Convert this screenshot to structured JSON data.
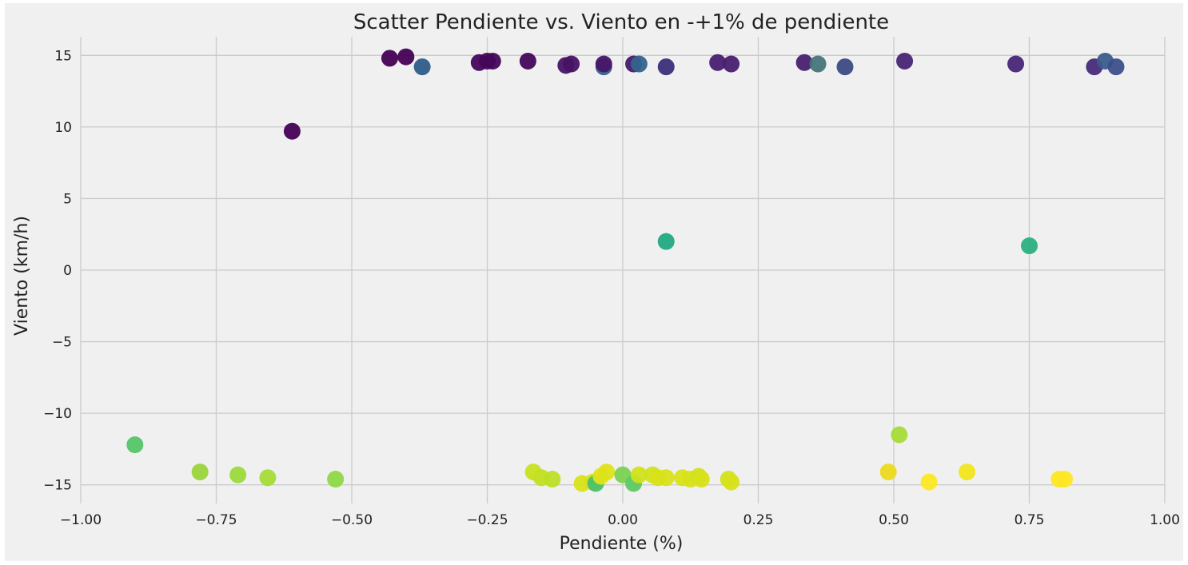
{
  "chart_data": {
    "type": "scatter",
    "title": "Scatter Pendiente vs. Viento en -+1% de pendiente",
    "xlabel": "Pendiente (%)",
    "ylabel": "Viento (km/h)",
    "xlim": [
      -1.0,
      1.0
    ],
    "ylim": [
      -16.3,
      16.3
    ],
    "xticks": [
      -1.0,
      -0.75,
      -0.5,
      -0.25,
      0.0,
      0.25,
      0.5,
      0.75,
      1.0
    ],
    "xtick_labels": [
      "−1.00",
      "−0.75",
      "−0.50",
      "−0.25",
      "0.00",
      "0.25",
      "0.50",
      "0.75",
      "1.00"
    ],
    "yticks": [
      15,
      10,
      5,
      0,
      -5,
      -10,
      -15
    ],
    "ytick_labels": [
      "15",
      "10",
      "5",
      "0",
      "−5",
      "−10",
      "−15"
    ],
    "grid": true,
    "colormap": "viridis",
    "points": [
      {
        "x": -0.61,
        "y": 9.7,
        "color": "#440154"
      },
      {
        "x": -0.43,
        "y": 14.8,
        "color": "#440154"
      },
      {
        "x": -0.4,
        "y": 14.9,
        "color": "#440154"
      },
      {
        "x": -0.37,
        "y": 14.2,
        "color": "#2f5c8a"
      },
      {
        "x": -0.265,
        "y": 14.5,
        "color": "#45065a"
      },
      {
        "x": -0.25,
        "y": 14.6,
        "color": "#45065a"
      },
      {
        "x": -0.24,
        "y": 14.6,
        "color": "#45065a"
      },
      {
        "x": -0.175,
        "y": 14.6,
        "color": "#45065a"
      },
      {
        "x": -0.105,
        "y": 14.3,
        "color": "#471365"
      },
      {
        "x": -0.095,
        "y": 14.4,
        "color": "#471365"
      },
      {
        "x": -0.035,
        "y": 14.2,
        "color": "#355f8d"
      },
      {
        "x": -0.035,
        "y": 14.4,
        "color": "#461668"
      },
      {
        "x": 0.02,
        "y": 14.4,
        "color": "#46196b"
      },
      {
        "x": 0.03,
        "y": 14.4,
        "color": "#33638d"
      },
      {
        "x": 0.08,
        "y": 14.2,
        "color": "#3b2f79"
      },
      {
        "x": 0.175,
        "y": 14.5,
        "color": "#481d6f"
      },
      {
        "x": 0.2,
        "y": 14.4,
        "color": "#481d6f"
      },
      {
        "x": 0.335,
        "y": 14.5,
        "color": "#482071"
      },
      {
        "x": 0.36,
        "y": 14.4,
        "color": "#46757a"
      },
      {
        "x": 0.41,
        "y": 14.2,
        "color": "#3b4a82"
      },
      {
        "x": 0.52,
        "y": 14.6,
        "color": "#482475"
      },
      {
        "x": 0.725,
        "y": 14.4,
        "color": "#482677"
      },
      {
        "x": 0.87,
        "y": 14.2,
        "color": "#472a7a"
      },
      {
        "x": 0.89,
        "y": 14.6,
        "color": "#3a5c8b"
      },
      {
        "x": 0.91,
        "y": 14.2,
        "color": "#3d4e8a"
      },
      {
        "x": 0.08,
        "y": 2.0,
        "color": "#22a884"
      },
      {
        "x": 0.75,
        "y": 1.7,
        "color": "#2ab07f"
      },
      {
        "x": -0.9,
        "y": -12.2,
        "color": "#54c568"
      },
      {
        "x": -0.78,
        "y": -14.1,
        "color": "#9ad43a"
      },
      {
        "x": -0.71,
        "y": -14.3,
        "color": "#9bd93c"
      },
      {
        "x": -0.655,
        "y": -14.5,
        "color": "#a5db36"
      },
      {
        "x": -0.53,
        "y": -14.6,
        "color": "#8fd744"
      },
      {
        "x": -0.165,
        "y": -14.1,
        "color": "#c8e020"
      },
      {
        "x": -0.15,
        "y": -14.5,
        "color": "#c2df23"
      },
      {
        "x": -0.13,
        "y": -14.6,
        "color": "#bddf26"
      },
      {
        "x": -0.075,
        "y": -14.9,
        "color": "#d8e219"
      },
      {
        "x": -0.055,
        "y": -14.8,
        "color": "#d8e219"
      },
      {
        "x": -0.05,
        "y": -14.9,
        "color": "#4ac16d"
      },
      {
        "x": -0.04,
        "y": -14.4,
        "color": "#e2e418"
      },
      {
        "x": -0.03,
        "y": -14.1,
        "color": "#dde318"
      },
      {
        "x": 0.0,
        "y": -14.3,
        "color": "#7ad151"
      },
      {
        "x": 0.02,
        "y": -14.9,
        "color": "#5ec962"
      },
      {
        "x": 0.03,
        "y": -14.3,
        "color": "#d0e11c"
      },
      {
        "x": 0.055,
        "y": -14.3,
        "color": "#d0e11c"
      },
      {
        "x": 0.065,
        "y": -14.5,
        "color": "#d8e219"
      },
      {
        "x": 0.08,
        "y": -14.5,
        "color": "#d8e219"
      },
      {
        "x": 0.11,
        "y": -14.5,
        "color": "#d8e219"
      },
      {
        "x": 0.125,
        "y": -14.6,
        "color": "#d8e219"
      },
      {
        "x": 0.14,
        "y": -14.4,
        "color": "#d0e11c"
      },
      {
        "x": 0.145,
        "y": -14.6,
        "color": "#d8e219"
      },
      {
        "x": 0.195,
        "y": -14.6,
        "color": "#d0e11c"
      },
      {
        "x": 0.2,
        "y": -14.8,
        "color": "#d8e219"
      },
      {
        "x": 0.49,
        "y": -14.1,
        "color": "#ecd91f"
      },
      {
        "x": 0.51,
        "y": -11.5,
        "color": "#a5db36"
      },
      {
        "x": 0.565,
        "y": -14.8,
        "color": "#fde725"
      },
      {
        "x": 0.635,
        "y": -14.1,
        "color": "#f1e51d"
      },
      {
        "x": 0.805,
        "y": -14.6,
        "color": "#fde725"
      },
      {
        "x": 0.815,
        "y": -14.6,
        "color": "#fde725"
      }
    ]
  }
}
